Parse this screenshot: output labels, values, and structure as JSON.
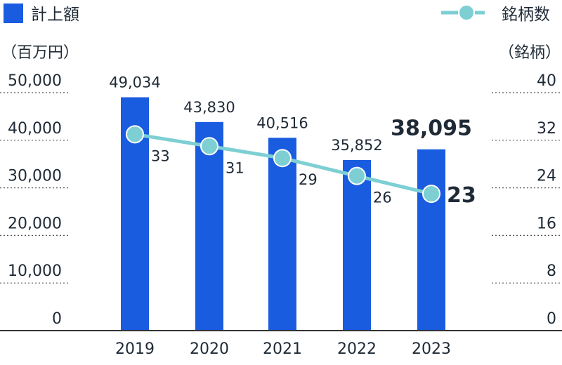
{
  "chart_data": {
    "type": "bar+line",
    "categories": [
      "2019",
      "2020",
      "2021",
      "2022",
      "2023"
    ],
    "series": [
      {
        "name": "計上額",
        "type": "bar",
        "axis": "left",
        "values": [
          49034,
          43830,
          40516,
          35852,
          38095
        ],
        "labels": [
          "49,034",
          "43,830",
          "40,516",
          "35,852",
          "38,095"
        ]
      },
      {
        "name": "銘柄数",
        "type": "line",
        "axis": "right",
        "values": [
          33,
          31,
          29,
          26,
          23
        ],
        "labels": [
          "33",
          "31",
          "29",
          "26",
          "23"
        ]
      }
    ],
    "left_axis": {
      "unit": "（百万円）",
      "ticks": [
        "50,000",
        "40,000",
        "30,000",
        "20,000",
        "10,000",
        "0"
      ],
      "ylim": [
        0,
        50000
      ]
    },
    "right_axis": {
      "unit": "（銘柄）",
      "ticks": [
        "40",
        "32",
        "24",
        "16",
        "8",
        "0"
      ],
      "ylim": [
        0,
        40
      ]
    },
    "highlight_index": 4
  },
  "colors": {
    "bar": "#1a5ce0",
    "line": "#7dcfd4",
    "marker_fill": "#7dcfd4",
    "marker_stroke": "#ffffff",
    "grid": "#555555",
    "text": "#1f2a36"
  }
}
